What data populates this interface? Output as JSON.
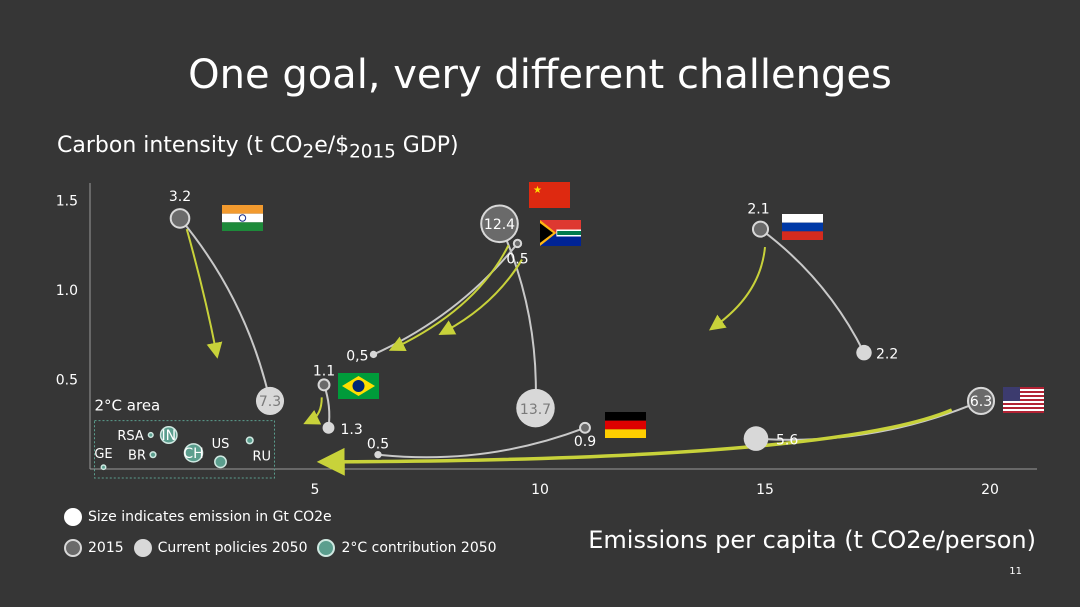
{
  "title": "One goal, very different challenges",
  "y_title": {
    "pre": "Carbon intensity (t CO",
    "sub1": "2",
    "mid": "e/$",
    "sub2": "2015",
    "post": " GDP)"
  },
  "x_title": "Emissions per capita (t CO2e/person)",
  "slide_number": "11",
  "legend": {
    "size_note": "Size indicates emission in Gt CO2e",
    "s2015": "2015",
    "current": "Current policies 2050",
    "two_deg": "2°C contribution 2050"
  },
  "area_label": "2°C area",
  "colors": {
    "background": "#363636",
    "arrow": "#c8d23a",
    "path": "#c9c9c9",
    "p2015": "#6a6a6a",
    "current": "#d8d8d8",
    "two_deg": "#5b9e8e"
  },
  "chart_data": {
    "type": "scatter",
    "xlim": [
      0,
      20.5
    ],
    "ylim": [
      0,
      1.6
    ],
    "xticks": [
      5,
      10,
      15,
      20
    ],
    "yticks": [
      0.5,
      1.0,
      1.5
    ],
    "two_deg_area": {
      "x": [
        0.1,
        4.1
      ],
      "y": [
        -0.05,
        0.27
      ]
    },
    "series": [
      {
        "name": "2015",
        "points": [
          {
            "country": "India",
            "x": 2.0,
            "y": 1.4,
            "size": 3.2,
            "label": "3.2",
            "flag": "india"
          },
          {
            "country": "China",
            "x": 9.1,
            "y": 1.37,
            "size": 12.4,
            "label": "12.4",
            "flag": "china"
          },
          {
            "country": "South Africa",
            "x": 9.5,
            "y": 1.26,
            "size": 0.5,
            "label": "0.5",
            "flag": "south-africa"
          },
          {
            "country": "Russia",
            "x": 14.9,
            "y": 1.34,
            "size": 2.1,
            "label": "2.1",
            "flag": "russia"
          },
          {
            "country": "Brazil",
            "x": 5.2,
            "y": 0.47,
            "size": 1.1,
            "label": "1.1",
            "flag": "brazil"
          },
          {
            "country": "USA",
            "x": 19.8,
            "y": 0.38,
            "size": 6.3,
            "label": "6.3",
            "flag": "usa"
          },
          {
            "country": "Germany",
            "x": 11.0,
            "y": 0.23,
            "size": 0.9,
            "label": "0.9",
            "flag": "germany"
          }
        ]
      },
      {
        "name": "Current policies 2050",
        "points": [
          {
            "country": "India",
            "x": 4.0,
            "y": 0.38,
            "size": 7.3,
            "label": "7.3"
          },
          {
            "country": "China",
            "x": 9.9,
            "y": 0.34,
            "size": 13.7,
            "label": "13.7"
          },
          {
            "country": "South Africa",
            "x": 6.3,
            "y": 0.64,
            "size": 0.5,
            "label": "0,5"
          },
          {
            "country": "Russia",
            "x": 17.2,
            "y": 0.65,
            "size": 2.2,
            "label": "2.2"
          },
          {
            "country": "Brazil",
            "x": 5.3,
            "y": 0.23,
            "size": 1.3,
            "label": "1.3"
          },
          {
            "country": "USA",
            "x": 14.8,
            "y": 0.17,
            "size": 5.6,
            "label": "5.6"
          },
          {
            "country": "Germany",
            "x": 6.4,
            "y": 0.08,
            "size": 0.5,
            "label": "0.5"
          }
        ]
      },
      {
        "name": "2°C contribution 2050",
        "points": [
          {
            "country": "RSA",
            "x": 1.35,
            "y": 0.19,
            "size": 0.2,
            "label": "RSA"
          },
          {
            "country": "IN",
            "x": 1.75,
            "y": 0.19,
            "size": 2.5,
            "label": "IN"
          },
          {
            "country": "BR",
            "x": 1.4,
            "y": 0.08,
            "size": 0.3,
            "label": "BR"
          },
          {
            "country": "CH",
            "x": 2.3,
            "y": 0.09,
            "size": 3.0,
            "label": "CH"
          },
          {
            "country": "US",
            "x": 2.9,
            "y": 0.04,
            "size": 1.2,
            "label": "US"
          },
          {
            "country": "RU",
            "x": 3.55,
            "y": 0.16,
            "size": 0.4,
            "label": "RU"
          },
          {
            "country": "GE",
            "x": 0.3,
            "y": 0.01,
            "size": 0.05,
            "label": "GE"
          }
        ]
      }
    ]
  }
}
